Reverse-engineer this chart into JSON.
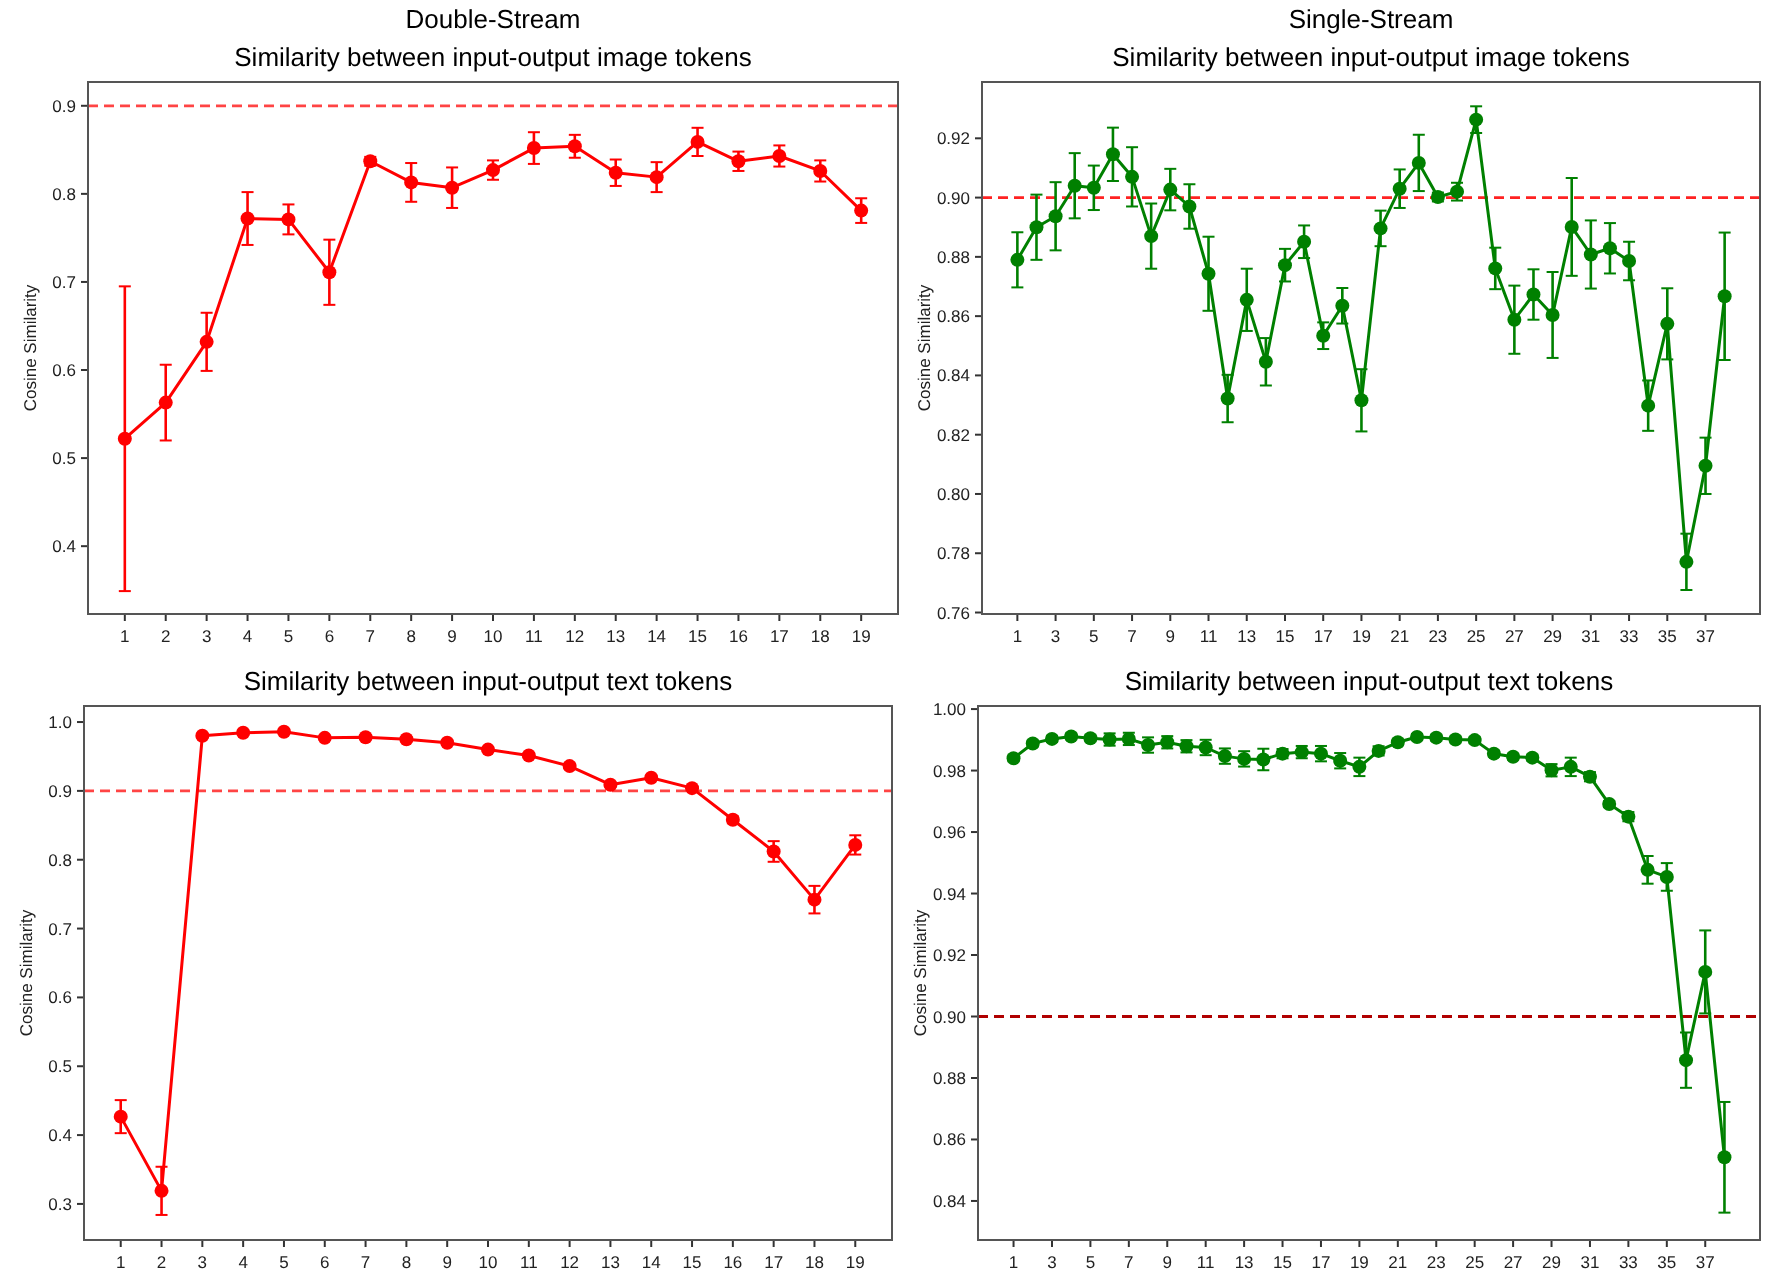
{
  "chart_data": [
    {
      "type": "line",
      "annotations": [
        "Double-Stream"
      ],
      "title": "Similarity between input-output image tokens",
      "ylabel": "Cosine Similarity",
      "x": [
        1,
        2,
        3,
        4,
        5,
        6,
        7,
        8,
        9,
        10,
        11,
        12,
        13,
        14,
        15,
        16,
        17,
        18,
        19
      ],
      "xlim": [
        0.1,
        19.9
      ],
      "xticks": [
        1,
        2,
        3,
        4,
        5,
        6,
        7,
        8,
        9,
        10,
        11,
        12,
        13,
        14,
        15,
        16,
        17,
        18,
        19
      ],
      "ylim": [
        0.323,
        0.927
      ],
      "yticks": [
        0.4,
        0.5,
        0.6,
        0.7,
        0.8,
        0.9
      ],
      "marker": "circle",
      "line_style": "solid",
      "grid": false,
      "series": [
        {
          "color": "#ff0000",
          "values": [
            0.522,
            0.563,
            0.632,
            0.772,
            0.771,
            0.711,
            0.837,
            0.813,
            0.807,
            0.827,
            0.852,
            0.854,
            0.824,
            0.819,
            0.859,
            0.837,
            0.843,
            0.826,
            0.781
          ],
          "errors": [
            0.173,
            0.043,
            0.033,
            0.03,
            0.017,
            0.037,
            0.005,
            0.022,
            0.023,
            0.011,
            0.018,
            0.013,
            0.015,
            0.017,
            0.016,
            0.011,
            0.012,
            0.012,
            0.014
          ]
        }
      ],
      "ref_lines": [
        {
          "axis": "y",
          "value": 0.9,
          "color": "#ff4444",
          "line_style": "dashed"
        }
      ]
    },
    {
      "type": "line",
      "annotations": [
        "Single-Stream"
      ],
      "title": "Similarity between input-output image tokens",
      "ylabel": "Cosine Similarity",
      "x": [
        1,
        2,
        3,
        4,
        5,
        6,
        7,
        8,
        9,
        10,
        11,
        12,
        13,
        14,
        15,
        16,
        17,
        18,
        19,
        20,
        21,
        22,
        23,
        24,
        25,
        26,
        27,
        28,
        29,
        30,
        31,
        32,
        33,
        34,
        35,
        36,
        37,
        38
      ],
      "xlim": [
        -0.85,
        39.85
      ],
      "xticks": [
        1,
        3,
        5,
        7,
        9,
        11,
        13,
        15,
        17,
        19,
        21,
        23,
        25,
        27,
        29,
        31,
        33,
        35,
        37
      ],
      "ylim": [
        0.7595,
        0.939
      ],
      "yticks": [
        {
          "value": 0.76,
          "label": "0.76"
        },
        {
          "value": 0.78,
          "label": "0.78"
        },
        {
          "value": 0.8,
          "label": "0.80"
        },
        {
          "value": 0.82,
          "label": "0.82"
        },
        {
          "value": 0.84,
          "label": "0.84"
        },
        {
          "value": 0.86,
          "label": "0.86"
        },
        {
          "value": 0.88,
          "label": "0.88"
        },
        {
          "value": 0.9,
          "label": "0.90"
        },
        {
          "value": 0.92,
          "label": "0.92"
        }
      ],
      "marker": "circle",
      "line_style": "solid",
      "grid": false,
      "series": [
        {
          "color": "#008000",
          "values": [
            0.879,
            0.89,
            0.8937,
            0.904,
            0.9033,
            0.9146,
            0.907,
            0.887,
            0.9027,
            0.897,
            0.8743,
            0.8322,
            0.8655,
            0.8446,
            0.8772,
            0.8851,
            0.8534,
            0.8635,
            0.8316,
            0.8896,
            0.903,
            0.9117,
            0.9002,
            0.902,
            0.9263,
            0.8761,
            0.8588,
            0.8673,
            0.8604,
            0.8901,
            0.8808,
            0.8829,
            0.8786,
            0.8298,
            0.8574,
            0.7771,
            0.8095,
            0.8667
          ],
          "errors": [
            0.0093,
            0.011,
            0.0115,
            0.011,
            0.0075,
            0.009,
            0.01,
            0.011,
            0.007,
            0.0075,
            0.0125,
            0.008,
            0.0105,
            0.008,
            0.0055,
            0.0055,
            0.0045,
            0.006,
            0.0105,
            0.006,
            0.0065,
            0.0095,
            0.0015,
            0.003,
            0.0045,
            0.007,
            0.0115,
            0.0085,
            0.0145,
            0.0165,
            0.0115,
            0.0085,
            0.0065,
            0.0085,
            0.012,
            0.0095,
            0.0095,
            0.0215
          ]
        }
      ],
      "ref_lines": [
        {
          "axis": "y",
          "value": 0.9,
          "color": "#ff2222",
          "line_style": "dashed"
        }
      ]
    },
    {
      "type": "line",
      "title": "Similarity between input-output text tokens",
      "ylabel": "Cosine Similarity",
      "x": [
        1,
        2,
        3,
        4,
        5,
        6,
        7,
        8,
        9,
        10,
        11,
        12,
        13,
        14,
        15,
        16,
        17,
        18,
        19
      ],
      "xlim": [
        0.1,
        19.9
      ],
      "xticks": [
        1,
        2,
        3,
        4,
        5,
        6,
        7,
        8,
        9,
        10,
        11,
        12,
        13,
        14,
        15,
        16,
        17,
        18,
        19
      ],
      "ylim": [
        0.2476,
        1.0233
      ],
      "yticks": [
        0.3,
        0.4,
        0.5,
        0.6,
        0.7,
        0.8,
        0.9,
        {
          "value": 1,
          "label": "1.0"
        }
      ],
      "marker": "circle",
      "line_style": "solid",
      "grid": false,
      "series": [
        {
          "color": "#ff0000",
          "values": [
            0.4268,
            0.319,
            0.98,
            0.9845,
            0.986,
            0.977,
            0.978,
            0.975,
            0.97,
            0.96,
            0.9515,
            0.936,
            0.909,
            0.919,
            0.904,
            0.858,
            0.812,
            0.742,
            0.8215
          ],
          "errors": [
            0.024,
            0.035,
            0.003,
            0.003,
            0.003,
            0.003,
            0.003,
            0.003,
            0.003,
            0.003,
            0.003,
            0.003,
            0.003,
            0.003,
            0.003,
            0.005,
            0.015,
            0.02,
            0.014
          ]
        }
      ],
      "ref_lines": [
        {
          "axis": "y",
          "value": 0.9,
          "color": "#ff4444",
          "line_style": "dashed"
        }
      ]
    },
    {
      "type": "line",
      "title": "Similarity between input-output text tokens",
      "ylabel": "Cosine Similarity",
      "x": [
        1,
        2,
        3,
        4,
        5,
        6,
        7,
        8,
        9,
        10,
        11,
        12,
        13,
        14,
        15,
        16,
        17,
        18,
        19,
        20,
        21,
        22,
        23,
        24,
        25,
        26,
        27,
        28,
        29,
        30,
        31,
        32,
        33,
        34,
        35,
        36,
        37,
        38
      ],
      "xlim": [
        -0.85,
        39.85
      ],
      "xticks": [
        1,
        3,
        5,
        7,
        9,
        11,
        13,
        15,
        17,
        19,
        21,
        23,
        25,
        27,
        29,
        31,
        33,
        35,
        37
      ],
      "ylim": [
        0.8273,
        1.001
      ],
      "yticks": [
        {
          "value": 0.84,
          "label": "0.84"
        },
        {
          "value": 0.86,
          "label": "0.86"
        },
        {
          "value": 0.88,
          "label": "0.88"
        },
        {
          "value": 0.9,
          "label": "0.90"
        },
        {
          "value": 0.92,
          "label": "0.92"
        },
        {
          "value": 0.94,
          "label": "0.94"
        },
        {
          "value": 0.96,
          "label": "0.96"
        },
        {
          "value": 0.98,
          "label": "0.98"
        },
        {
          "value": 1,
          "label": "1.00"
        }
      ],
      "marker": "circle",
      "line_style": "solid",
      "grid": false,
      "series": [
        {
          "color": "#008000",
          "values": [
            0.984,
            0.9888,
            0.9903,
            0.9911,
            0.9905,
            0.9901,
            0.9903,
            0.9883,
            0.9892,
            0.9879,
            0.9875,
            0.9847,
            0.9838,
            0.9836,
            0.9855,
            0.986,
            0.9855,
            0.9832,
            0.9812,
            0.9864,
            0.9892,
            0.9909,
            0.9907,
            0.9901,
            0.9899,
            0.9855,
            0.9845,
            0.9842,
            0.9801,
            0.9812,
            0.978,
            0.9691,
            0.965,
            0.9477,
            0.9454,
            0.8858,
            0.9145,
            0.8542
          ],
          "errors": [
            0.001,
            0.001,
            0.001,
            0.001,
            0.001,
            0.002,
            0.002,
            0.0025,
            0.002,
            0.002,
            0.0025,
            0.0025,
            0.0025,
            0.0035,
            0.0015,
            0.002,
            0.0025,
            0.0025,
            0.003,
            0.0015,
            0.001,
            0.001,
            0.001,
            0.001,
            0.001,
            0.001,
            0.001,
            0.001,
            0.002,
            0.003,
            0.0015,
            0.001,
            0.0015,
            0.0045,
            0.0045,
            0.009,
            0.0135,
            0.018
          ]
        }
      ],
      "ref_lines": [
        {
          "axis": "y",
          "value": 0.9,
          "color": "#b00000",
          "line_style": "dashed"
        }
      ]
    }
  ]
}
